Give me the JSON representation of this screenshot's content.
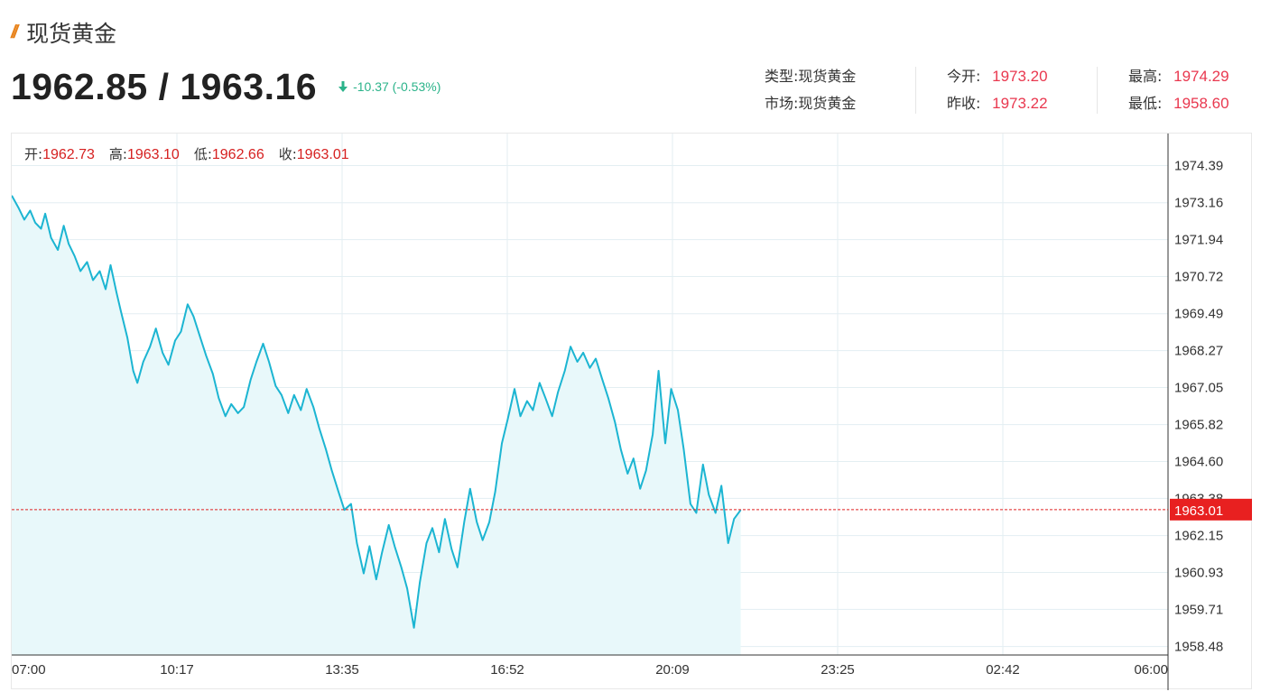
{
  "header": {
    "title": "现货黄金",
    "price": "1962.85 / 1963.16",
    "change": "-10.37 (-0.53%)"
  },
  "info": [
    [
      {
        "label": "类型:",
        "value": "现货黄金",
        "plain": true
      },
      {
        "label": "市场:",
        "value": "现货黄金",
        "plain": true
      }
    ],
    [
      {
        "label": "今开:",
        "value": "1973.20"
      },
      {
        "label": "昨收:",
        "value": "1973.22"
      }
    ],
    [
      {
        "label": "最高:",
        "value": "1974.29"
      },
      {
        "label": "最低:",
        "value": "1958.60"
      }
    ]
  ],
  "ohlc": [
    {
      "label": "开:",
      "value": "1962.73"
    },
    {
      "label": "高:",
      "value": "1963.10"
    },
    {
      "label": "低:",
      "value": "1962.66"
    },
    {
      "label": "收:",
      "value": "1963.01"
    }
  ],
  "colors": {
    "line": "#1cb5d2",
    "fill": "#e8f8fa",
    "grid": "#e3eef2",
    "current_line": "#e02020",
    "current_badge": "#e82020",
    "negative": "#2bb38a",
    "highlight": "#e9384f"
  },
  "chart_data": {
    "type": "area",
    "title": "",
    "xlabel": "",
    "ylabel": "",
    "x_ticks": [
      "07:00",
      "10:17",
      "13:35",
      "16:52",
      "20:09",
      "23:25",
      "02:42",
      "06:00"
    ],
    "y_ticks": [
      1974.39,
      1973.16,
      1971.94,
      1970.72,
      1969.49,
      1968.27,
      1967.05,
      1965.82,
      1964.6,
      1963.38,
      1962.15,
      1960.93,
      1959.71,
      1958.48
    ],
    "ylim": [
      1958.2,
      1975.45
    ],
    "x_range_minutes": [
      0,
      1380
    ],
    "current_value": 1963.01,
    "current_label": "1963.01",
    "grid": true,
    "series": [
      {
        "x_minutes": [
          0,
          8,
          15,
          22,
          28,
          35,
          40,
          47,
          55,
          62,
          68,
          75,
          82,
          90,
          97,
          105,
          112,
          118,
          125,
          130,
          138,
          145,
          150,
          157,
          165,
          172,
          180,
          187,
          195,
          202,
          210,
          217,
          225,
          232,
          240,
          247,
          255,
          262,
          270,
          277,
          285,
          292,
          300,
          307,
          315,
          322,
          330,
          337,
          345,
          352,
          360,
          367,
          375,
          382,
          390,
          397,
          405,
          412,
          420,
          427,
          435,
          442,
          450,
          457,
          465,
          472,
          480,
          487,
          495,
          502,
          510,
          517,
          525,
          532,
          540,
          547,
          555,
          562,
          570,
          577,
          585,
          592,
          600,
          607,
          615,
          622,
          630,
          637,
          645,
          652,
          660,
          667,
          675,
          682,
          690,
          697,
          705,
          712,
          720,
          727,
          735,
          742,
          750,
          757,
          765,
          772,
          780,
          787,
          795,
          802,
          810,
          817,
          825,
          832,
          840,
          847,
          855,
          862,
          870
        ],
        "values": [
          1973.4,
          1973.0,
          1972.6,
          1972.9,
          1972.5,
          1972.3,
          1972.8,
          1972.0,
          1971.6,
          1972.4,
          1971.8,
          1971.4,
          1970.9,
          1971.2,
          1970.6,
          1970.9,
          1970.3,
          1971.1,
          1970.2,
          1969.6,
          1968.7,
          1967.6,
          1967.2,
          1967.9,
          1968.4,
          1969.0,
          1968.2,
          1967.8,
          1968.6,
          1968.9,
          1969.8,
          1969.4,
          1968.7,
          1968.1,
          1967.5,
          1966.7,
          1966.1,
          1966.5,
          1966.2,
          1966.4,
          1967.3,
          1967.9,
          1968.5,
          1967.9,
          1967.1,
          1966.8,
          1966.2,
          1966.8,
          1966.3,
          1967.0,
          1966.4,
          1965.7,
          1965.0,
          1964.3,
          1963.6,
          1963.0,
          1963.2,
          1961.9,
          1960.9,
          1961.8,
          1960.7,
          1961.6,
          1962.5,
          1961.8,
          1961.1,
          1960.4,
          1959.1,
          1960.6,
          1961.9,
          1962.4,
          1961.6,
          1962.7,
          1961.7,
          1961.1,
          1962.6,
          1963.7,
          1962.6,
          1962.0,
          1962.6,
          1963.6,
          1965.2,
          1966.0,
          1967.0,
          1966.1,
          1966.6,
          1966.3,
          1967.2,
          1966.7,
          1966.1,
          1966.9,
          1967.6,
          1968.4,
          1967.9,
          1968.2,
          1967.7,
          1968.0,
          1967.3,
          1966.7,
          1965.9,
          1965.0,
          1964.2,
          1964.7,
          1963.7,
          1964.3,
          1965.5,
          1967.6,
          1965.2,
          1967.0,
          1966.3,
          1965.0,
          1963.2,
          1962.9,
          1964.5,
          1963.5,
          1962.9,
          1963.8,
          1961.9,
          1962.7,
          1963.0
        ]
      }
    ]
  }
}
